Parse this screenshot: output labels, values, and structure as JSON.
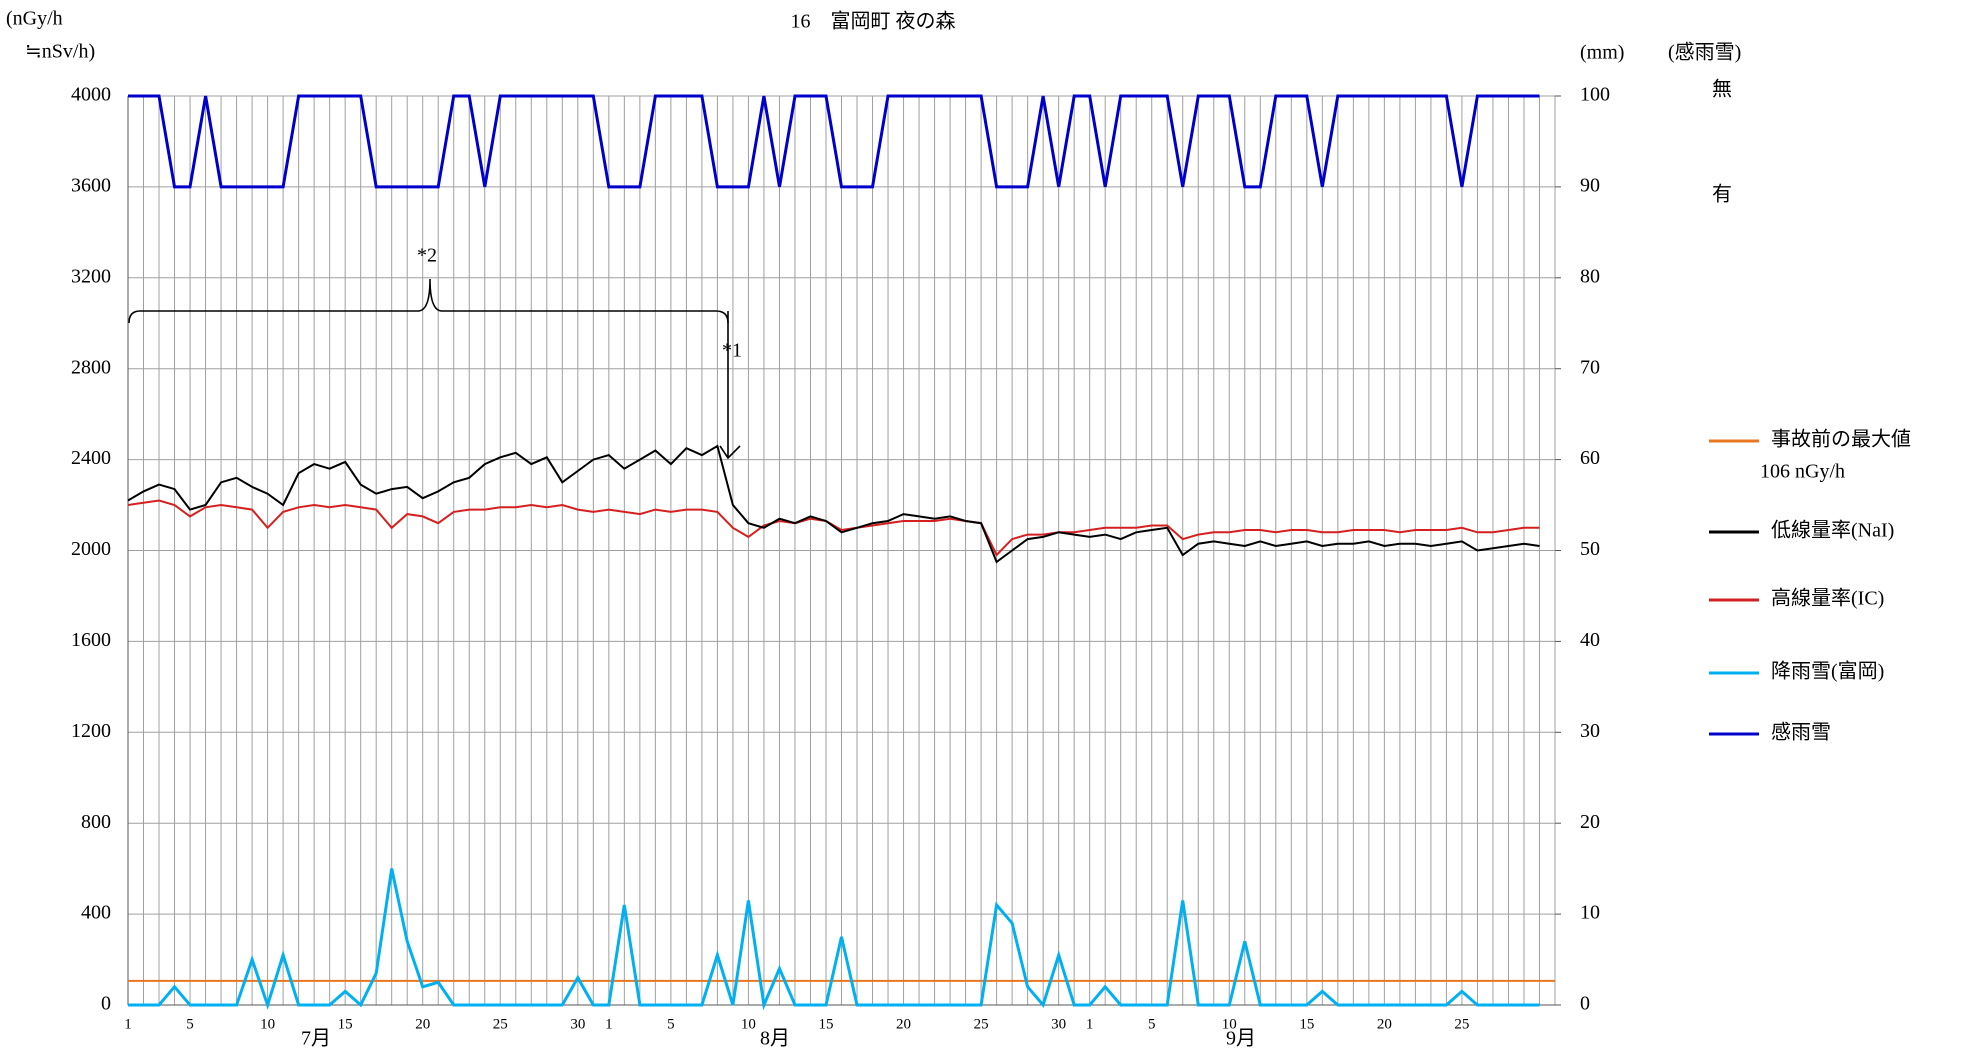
{
  "chart_data": {
    "type": "line",
    "title": "16　富岡町 夜の森",
    "y_label": [
      "(nGy/h",
      "≒nSv/h)"
    ],
    "y2_label": [
      "(mm)",
      "(感雨雪)"
    ],
    "sensing_labels": [
      "無",
      "有"
    ],
    "annotations": [
      "*2",
      "*1"
    ],
    "months": [
      "7月",
      "8月",
      "9月"
    ],
    "categories": [
      "1",
      null,
      null,
      null,
      "5",
      null,
      null,
      null,
      null,
      "10",
      null,
      null,
      null,
      null,
      "15",
      null,
      null,
      null,
      null,
      "20",
      null,
      null,
      null,
      null,
      "25",
      null,
      null,
      null,
      null,
      "30",
      null,
      "1",
      null,
      null,
      null,
      "5",
      null,
      null,
      null,
      null,
      "10",
      null,
      null,
      null,
      null,
      "15",
      null,
      null,
      null,
      null,
      "20",
      null,
      null,
      null,
      null,
      "25",
      null,
      null,
      null,
      null,
      "30",
      null,
      "1",
      null,
      null,
      null,
      "5",
      null,
      null,
      null,
      null,
      "10",
      null,
      null,
      null,
      null,
      "15",
      null,
      null,
      null,
      null,
      "20",
      null,
      null,
      null,
      null,
      "25",
      null,
      null,
      null,
      null,
      null
    ],
    "ylim": [
      0,
      4000
    ],
    "yticks": [
      0,
      400,
      800,
      1200,
      1600,
      2000,
      2400,
      2800,
      3200,
      3600,
      4000
    ],
    "y2lim": [
      0,
      100
    ],
    "y2ticks": [
      0,
      10,
      20,
      30,
      40,
      50,
      60,
      70,
      80,
      90,
      100
    ],
    "grid": true,
    "reference_line": {
      "name": "事故前の最大値",
      "label": "106 nGy/h",
      "value": 106,
      "color": "#e87722"
    },
    "series": [
      {
        "name": "低線量率(NaI)",
        "color": "#000000",
        "values": [
          2220,
          2260,
          2290,
          2270,
          2180,
          2200,
          2300,
          2320,
          2280,
          2250,
          2200,
          2340,
          2380,
          2360,
          2390,
          2290,
          2250,
          2270,
          2280,
          2230,
          2260,
          2300,
          2320,
          2380,
          2410,
          2430,
          2380,
          2410,
          2300,
          2350,
          2400,
          2420,
          2360,
          2400,
          2440,
          2380,
          2450,
          2420,
          2460,
          2200,
          2120,
          2100,
          2140,
          2120,
          2150,
          2130,
          2080,
          2100,
          2120,
          2130,
          2160,
          2150,
          2140,
          2150,
          2130,
          2120,
          1950,
          2000,
          2050,
          2060,
          2080,
          2070,
          2060,
          2070,
          2050,
          2080,
          2090,
          2100,
          1980,
          2030,
          2040,
          2030,
          2020,
          2040,
          2020,
          2030,
          2040,
          2020,
          2030,
          2030,
          2040,
          2020,
          2030,
          2030,
          2020,
          2030,
          2040,
          2000,
          2010,
          2020,
          2030,
          2020
        ]
      },
      {
        "name": "高線量率(IC)",
        "color": "#d42020",
        "values": [
          2200,
          2210,
          2220,
          2200,
          2150,
          2190,
          2200,
          2190,
          2180,
          2100,
          2170,
          2190,
          2200,
          2190,
          2200,
          2190,
          2180,
          2100,
          2160,
          2150,
          2120,
          2170,
          2180,
          2180,
          2190,
          2190,
          2200,
          2190,
          2200,
          2180,
          2170,
          2180,
          2170,
          2160,
          2180,
          2170,
          2180,
          2180,
          2170,
          2100,
          2060,
          2110,
          2130,
          2120,
          2140,
          2130,
          2090,
          2100,
          2110,
          2120,
          2130,
          2130,
          2130,
          2140,
          2130,
          2120,
          1980,
          2050,
          2070,
          2070,
          2080,
          2080,
          2090,
          2100,
          2100,
          2100,
          2110,
          2110,
          2050,
          2070,
          2080,
          2080,
          2090,
          2090,
          2080,
          2090,
          2090,
          2080,
          2080,
          2090,
          2090,
          2090,
          2080,
          2090,
          2090,
          2090,
          2100,
          2080,
          2080,
          2090,
          2100,
          2100
        ]
      },
      {
        "name": "降雨雪(富岡)",
        "color": "#00b0f0",
        "axis": "y2",
        "values": [
          0,
          0,
          0,
          2,
          0,
          0,
          0,
          0,
          5,
          0,
          5.5,
          0,
          0,
          0,
          1.5,
          0,
          3.5,
          15,
          7,
          2,
          2.5,
          0,
          0,
          0,
          0,
          0,
          0,
          0,
          0,
          3,
          0,
          0,
          11,
          0,
          0,
          0,
          0,
          0,
          5.5,
          0,
          11.5,
          0,
          4,
          0,
          0,
          0,
          7.5,
          0,
          0,
          0,
          0,
          0,
          0,
          0,
          0,
          0,
          11,
          9,
          2,
          0,
          5.5,
          0,
          0,
          2,
          0,
          0,
          0,
          0,
          11.5,
          0,
          0,
          0,
          7,
          0,
          0,
          0,
          0,
          1.5,
          0,
          0,
          0,
          0,
          0,
          0,
          0,
          0,
          1.5,
          0,
          0,
          0,
          0,
          0
        ]
      },
      {
        "name": "感雨雪",
        "color": "#0000cc",
        "axis": "y2",
        "values": [
          100,
          100,
          100,
          90,
          90,
          100,
          90,
          90,
          90,
          90,
          90,
          100,
          100,
          100,
          100,
          100,
          90,
          90,
          90,
          90,
          90,
          100,
          100,
          90,
          100,
          100,
          100,
          100,
          100,
          100,
          100,
          90,
          90,
          90,
          100,
          100,
          100,
          100,
          90,
          90,
          90,
          100,
          90,
          100,
          100,
          100,
          90,
          90,
          90,
          100,
          100,
          100,
          100,
          100,
          100,
          100,
          90,
          90,
          90,
          100,
          90,
          100,
          100,
          90,
          100,
          100,
          100,
          100,
          90,
          100,
          100,
          100,
          90,
          90,
          100,
          100,
          100,
          90,
          100,
          100,
          100,
          100,
          100,
          100,
          100,
          100,
          90,
          100,
          100,
          100,
          100,
          100
        ]
      }
    ]
  }
}
